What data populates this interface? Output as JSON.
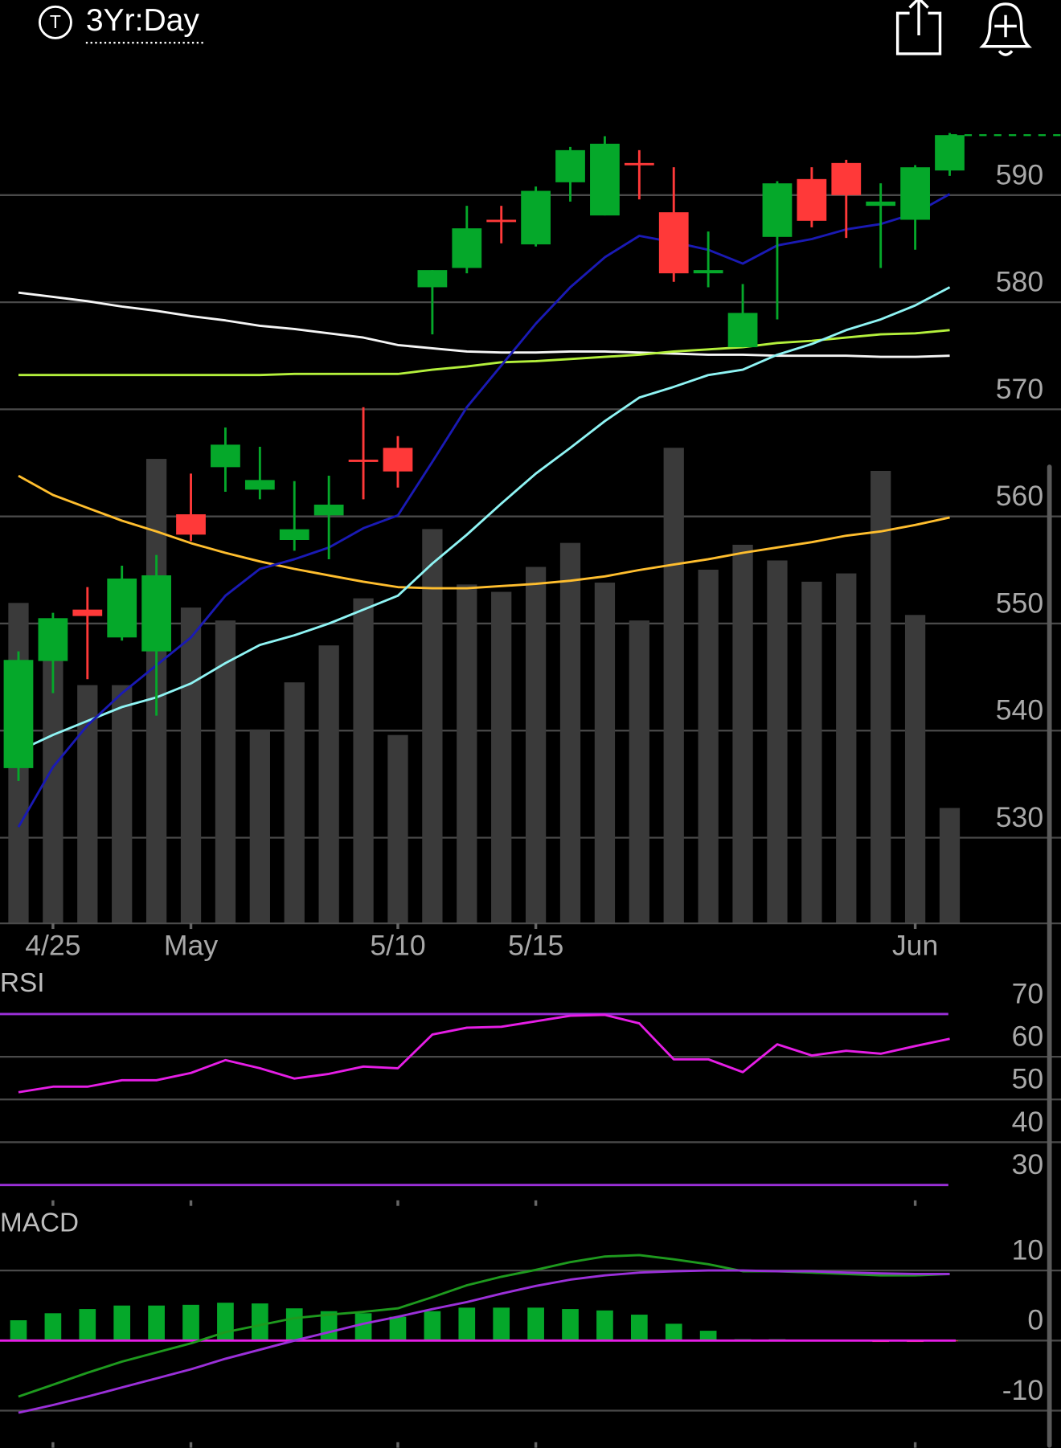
{
  "header": {
    "icon_label": "T",
    "title": "3Yr:Day"
  },
  "chart_data": [
    {
      "type": "candlestick",
      "categories": [
        null,
        "4/25",
        null,
        null,
        null,
        "May",
        null,
        null,
        null,
        null,
        null,
        "5/10",
        null,
        null,
        null,
        "5/15",
        null,
        null,
        null,
        null,
        null,
        null,
        null,
        null,
        null,
        null,
        "Jun",
        null
      ],
      "open": [
        536.5,
        546.5,
        551.3,
        548.7,
        547.4,
        560.2,
        564.6,
        562.5,
        557.8,
        560.1,
        565.3,
        566.4,
        581.4,
        583.2,
        587.7,
        585.4,
        591.2,
        588.1,
        593.0,
        588.4,
        582.7,
        575.8,
        586.1,
        591.5,
        593.0,
        589.0,
        587.7,
        592.3
      ],
      "high": [
        547.4,
        551.0,
        553.4,
        555.4,
        556.4,
        564.0,
        568.3,
        566.5,
        563.3,
        563.8,
        570.2,
        567.5,
        583.0,
        589.0,
        589.0,
        590.8,
        594.5,
        595.5,
        594.2,
        592.6,
        586.6,
        581.7,
        591.3,
        592.6,
        593.3,
        591.1,
        592.8,
        595.8
      ],
      "low": [
        535.3,
        543.5,
        544.8,
        548.4,
        541.4,
        557.7,
        562.3,
        561.6,
        556.8,
        556.0,
        561.6,
        562.7,
        577.0,
        582.7,
        585.5,
        585.2,
        589.4,
        588.1,
        589.6,
        581.9,
        581.4,
        575.8,
        578.4,
        587.0,
        586.0,
        583.2,
        584.9,
        591.8
      ],
      "close": [
        546.6,
        550.5,
        550.7,
        554.2,
        554.5,
        558.3,
        566.7,
        563.4,
        558.8,
        561.1,
        565.1,
        564.2,
        583.0,
        586.9,
        587.6,
        590.4,
        594.2,
        594.8,
        592.8,
        582.7,
        583.0,
        579.0,
        591.1,
        587.6,
        590.0,
        589.4,
        592.6,
        595.6
      ],
      "volume": [
        347,
        310,
        258,
        258,
        503,
        342,
        328,
        210,
        261,
        301,
        352,
        204,
        427,
        367,
        359,
        386,
        412,
        369,
        328,
        515,
        383,
        410,
        393,
        370,
        379,
        490,
        334,
        125
      ],
      "volume_color": "#3a3a3a",
      "up_color": "#05a82a",
      "down_color": "#ff3939",
      "moving_averages": [
        {
          "color": "#f5f5f5",
          "values": [
            580.9,
            580.5,
            580.1,
            579.6,
            579.2,
            578.7,
            578.3,
            577.8,
            577.5,
            577.1,
            576.7,
            576.0,
            575.7,
            575.4,
            575.3,
            575.3,
            575.4,
            575.4,
            575.3,
            575.2,
            575.1,
            575.1,
            575.0,
            575.0,
            575.0,
            574.9,
            574.9,
            575.0
          ]
        },
        {
          "color": "#b4f03c",
          "values": [
            573.2,
            573.2,
            573.2,
            573.2,
            573.2,
            573.2,
            573.2,
            573.2,
            573.3,
            573.3,
            573.3,
            573.3,
            573.7,
            574.0,
            574.4,
            574.5,
            574.7,
            574.9,
            575.1,
            575.4,
            575.6,
            575.8,
            576.2,
            576.4,
            576.7,
            577.0,
            577.1,
            577.4
          ]
        },
        {
          "color": "#ffbe2e",
          "values": [
            563.8,
            562.0,
            560.8,
            559.6,
            558.6,
            557.5,
            556.6,
            555.8,
            555.1,
            554.5,
            553.9,
            553.4,
            553.3,
            553.3,
            553.5,
            553.7,
            554.0,
            554.4,
            555.0,
            555.5,
            556.0,
            556.6,
            557.1,
            557.6,
            558.2,
            558.6,
            559.2,
            559.9
          ]
        },
        {
          "color": "#8ff4f4",
          "values": [
            538.1,
            539.6,
            540.9,
            542.2,
            543.1,
            544.4,
            546.3,
            548.0,
            548.9,
            550.0,
            551.3,
            552.6,
            555.6,
            558.3,
            561.2,
            564.0,
            566.4,
            568.9,
            571.1,
            572.1,
            573.2,
            573.7,
            575.1,
            576.1,
            577.4,
            578.4,
            579.7,
            581.4
          ]
        },
        {
          "color": "#1a1ab4",
          "values": [
            531.0,
            536.6,
            540.5,
            543.5,
            546.1,
            548.7,
            552.6,
            555.1,
            556.0,
            557.1,
            558.9,
            560.1,
            565.1,
            570.2,
            574.1,
            578.0,
            581.4,
            584.2,
            586.2,
            585.6,
            584.9,
            583.6,
            585.3,
            585.9,
            586.8,
            587.3,
            588.3,
            590.1
          ]
        }
      ],
      "ylim": [
        522.0,
        601.3
      ],
      "yticks": [
        530,
        540,
        550,
        560,
        570,
        580,
        590
      ],
      "grid": true
    },
    {
      "type": "line",
      "title": "RSI",
      "series": [
        {
          "color": "#e61ee6",
          "values": [
            51.7,
            53.0,
            53.0,
            54.5,
            54.5,
            56.2,
            59.2,
            57.3,
            54.9,
            56.0,
            57.7,
            57.3,
            65.2,
            66.8,
            67.0,
            68.3,
            69.6,
            69.8,
            67.8,
            59.4,
            59.4,
            56.4,
            62.9,
            60.3,
            61.4,
            60.7,
            62.5,
            64.2
          ]
        }
      ],
      "ylim": [
        26.4,
        80.4
      ],
      "yticks": [
        30,
        40,
        50,
        60,
        70
      ],
      "grid": true,
      "edge_tick_color": "#9b30d9"
    },
    {
      "type": "macd",
      "title": "MACD",
      "histogram": {
        "values": [
          2.9,
          3.9,
          4.5,
          5.0,
          5.0,
          5.1,
          5.4,
          5.3,
          4.6,
          4.2,
          3.9,
          3.4,
          4.2,
          4.7,
          4.7,
          4.7,
          4.5,
          4.3,
          3.7,
          2.4,
          1.4,
          0.2,
          0.2,
          0,
          0,
          -0.2,
          -0.2,
          -0.1
        ],
        "up_color": "#05a82a",
        "down_color": "#ff3939"
      },
      "series": [
        {
          "color": "#1e9a1e",
          "values": [
            -8.0,
            -6.3,
            -4.6,
            -3.0,
            -1.7,
            -0.4,
            1.2,
            2.2,
            3.2,
            3.7,
            4.1,
            4.6,
            6.2,
            7.9,
            9.1,
            10.1,
            11.2,
            12.0,
            12.2,
            11.6,
            10.9,
            9.9,
            9.9,
            9.7,
            9.5,
            9.3,
            9.3,
            9.5
          ]
        },
        {
          "color": "#9b30d9",
          "values": [
            -10.3,
            -9.2,
            -8.0,
            -6.7,
            -5.4,
            -4.1,
            -2.6,
            -1.3,
            0,
            1.2,
            2.4,
            3.4,
            4.5,
            5.5,
            6.7,
            7.8,
            8.7,
            9.3,
            9.7,
            9.9,
            10.0,
            10.0,
            9.9,
            9.9,
            9.7,
            9.6,
            9.5,
            9.5
          ]
        }
      ],
      "zero_line_color": "#e61ee6",
      "ylim": [
        -15.3,
        18.7
      ],
      "yticks": [
        -10,
        0,
        10
      ],
      "grid": true
    }
  ]
}
